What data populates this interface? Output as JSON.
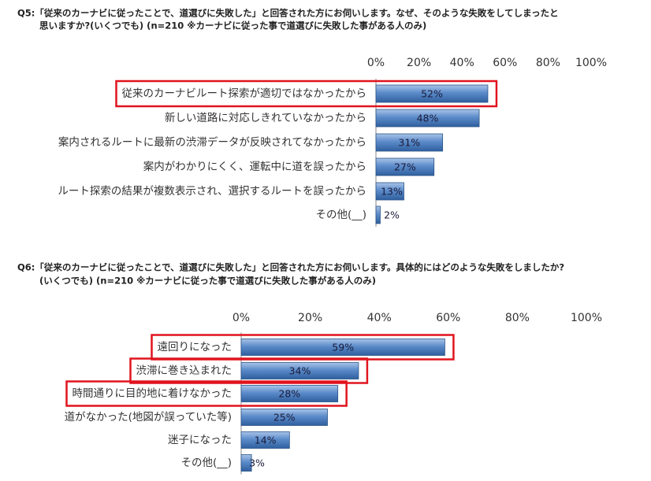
{
  "chart_data": [
    {
      "type": "bar",
      "orientation": "horizontal",
      "title": [
        "Q5:「従来のカーナビに従ったことで、道選びに失敗した」と回答された方にお伺いします。なぜ、そのような失敗をしてしまったと",
        "思いますか?(いくつでも) (n=210 ※カーナビに従った事で道選びに失敗した事がある人のみ)"
      ],
      "categories": [
        "従来のカーナビルート探索が適切ではなかったから",
        "新しい道路に対応しきれていなかったから",
        "案内されるルートに最新の渋滞データが反映されてなかったから",
        "案内がわかりにくく、運転中に道を誤ったから",
        "ルート探索の結果が複数表示され、選択するルートを誤ったから",
        "その他(__)"
      ],
      "values": [
        52,
        48,
        31,
        27,
        13,
        2
      ],
      "value_labels": [
        "52%",
        "48%",
        "31%",
        "27%",
        "13%",
        "2%"
      ],
      "highlighted": [
        true,
        false,
        false,
        false,
        false,
        false
      ],
      "color": "#4f81bd",
      "xlim": [
        0,
        100
      ],
      "xticks": [
        {
          "value": 0,
          "label": "0%"
        },
        {
          "value": 20,
          "label": "20%"
        },
        {
          "value": 40,
          "label": "40%"
        },
        {
          "value": 60,
          "label": "60%"
        },
        {
          "value": 80,
          "label": "80%"
        },
        {
          "value": 100,
          "label": "100%"
        }
      ]
    },
    {
      "type": "bar",
      "orientation": "horizontal",
      "title": [
        "Q6:「従来のカーナビに従ったことで、道選びに失敗した」と回答された方にお伺いします。具体的にはどのような失敗をしましたか?",
        "(いくつでも) (n=210 ※カーナビに従った事で道選びに失敗した事がある人のみ)"
      ],
      "categories": [
        "遠回りになった",
        "渋滞に巻き込まれた",
        "時間通りに目的地に着けなかった",
        "道がなかった(地図が誤っていた等)",
        "迷子になった",
        "その他(__)"
      ],
      "values": [
        59,
        34,
        28,
        25,
        14,
        3
      ],
      "value_labels": [
        "59%",
        "34%",
        "28%",
        "25%",
        "14%",
        "3%"
      ],
      "highlighted": [
        true,
        true,
        true,
        false,
        false,
        false
      ],
      "color": "#4f81bd",
      "xlim": [
        0,
        100
      ],
      "xticks": [
        {
          "value": 0,
          "label": "0%"
        },
        {
          "value": 20,
          "label": "20%"
        },
        {
          "value": 40,
          "label": "40%"
        },
        {
          "value": 60,
          "label": "60%"
        },
        {
          "value": 80,
          "label": "80%"
        },
        {
          "value": 100,
          "label": "100%"
        }
      ]
    }
  ]
}
